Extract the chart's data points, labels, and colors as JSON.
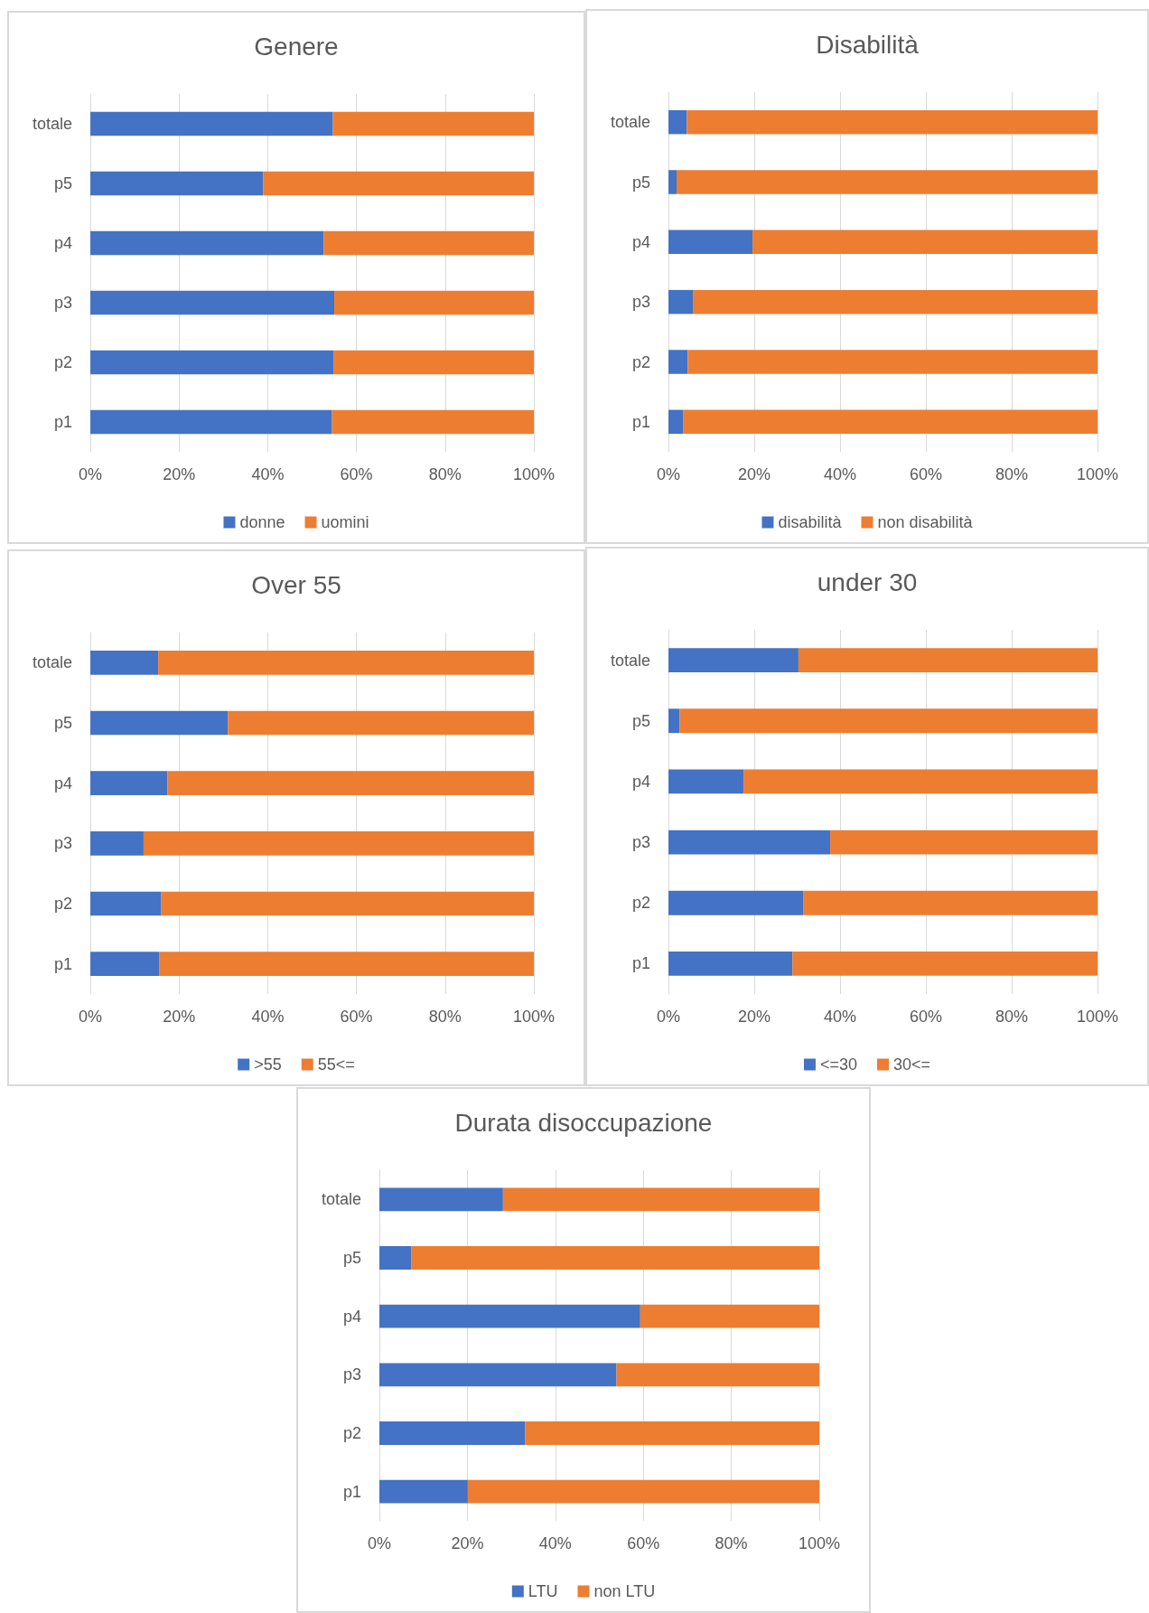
{
  "chart_data": [
    {
      "type": "bar",
      "title": "Genere",
      "orientation": "horizontal",
      "stacked": true,
      "categories": [
        "totale",
        "p5",
        "p4",
        "p3",
        "p2",
        "p1"
      ],
      "series": [
        {
          "name": "donne",
          "color": "#4472c4",
          "values": [
            54.7,
            39,
            52.6,
            55,
            54.8,
            54.5
          ]
        },
        {
          "name": "uomini",
          "color": "#ed7d31",
          "values": [
            45.3,
            61,
            47.4,
            45,
            45.2,
            45.5
          ]
        }
      ],
      "xlim": [
        0,
        100
      ],
      "xticks": [
        {
          "value": 0,
          "label": "0%"
        },
        {
          "value": 20,
          "label": "20%"
        },
        {
          "value": 40,
          "label": "40%"
        },
        {
          "value": 60,
          "label": "60%"
        },
        {
          "value": 80,
          "label": "80%"
        },
        {
          "value": 100,
          "label": "100%"
        }
      ],
      "grid": "x",
      "legend": "bottom"
    },
    {
      "type": "bar",
      "title": "Disabilità",
      "orientation": "horizontal",
      "stacked": true,
      "categories": [
        "totale",
        "p5",
        "p4",
        "p3",
        "p2",
        "p1"
      ],
      "series": [
        {
          "name": "disabilità",
          "color": "#4472c4",
          "values": [
            4.3,
            1.9,
            19.6,
            5.7,
            4.5,
            3.5
          ]
        },
        {
          "name": "non disabilità",
          "color": "#ed7d31",
          "values": [
            95.7,
            98.1,
            80.4,
            94.3,
            95.5,
            96.5
          ]
        }
      ],
      "xlim": [
        0,
        100
      ],
      "xticks": [
        {
          "value": 0,
          "label": "0%"
        },
        {
          "value": 20,
          "label": "20%"
        },
        {
          "value": 40,
          "label": "40%"
        },
        {
          "value": 60,
          "label": "60%"
        },
        {
          "value": 80,
          "label": "80%"
        },
        {
          "value": 100,
          "label": "100%"
        }
      ],
      "grid": "x",
      "legend": "bottom"
    },
    {
      "type": "bar",
      "title": "Over 55",
      "orientation": "horizontal",
      "stacked": true,
      "categories": [
        "totale",
        "p5",
        "p4",
        "p3",
        "p2",
        "p1"
      ],
      "series": [
        {
          "name": ">55",
          "color": "#4472c4",
          "values": [
            15.3,
            31,
            17.4,
            12,
            16,
            15.5
          ]
        },
        {
          "name": "55<=",
          "color": "#ed7d31",
          "values": [
            84.7,
            69,
            82.6,
            88,
            84,
            84.5
          ]
        }
      ],
      "xlim": [
        0,
        100
      ],
      "xticks": [
        {
          "value": 0,
          "label": "0%"
        },
        {
          "value": 20,
          "label": "20%"
        },
        {
          "value": 40,
          "label": "40%"
        },
        {
          "value": 60,
          "label": "60%"
        },
        {
          "value": 80,
          "label": "80%"
        },
        {
          "value": 100,
          "label": "100%"
        }
      ],
      "grid": "x",
      "legend": "bottom"
    },
    {
      "type": "bar",
      "title": "under 30",
      "orientation": "horizontal",
      "stacked": true,
      "categories": [
        "totale",
        "p5",
        "p4",
        "p3",
        "p2",
        "p1"
      ],
      "series": [
        {
          "name": "<=30",
          "color": "#4472c4",
          "values": [
            30.3,
            2.6,
            17.5,
            37.7,
            31.5,
            28.9
          ]
        },
        {
          "name": "30<=",
          "color": "#ed7d31",
          "values": [
            69.7,
            97.4,
            82.5,
            62.3,
            68.5,
            71.1
          ]
        }
      ],
      "xlim": [
        0,
        100
      ],
      "xticks": [
        {
          "value": 0,
          "label": "0%"
        },
        {
          "value": 20,
          "label": "20%"
        },
        {
          "value": 40,
          "label": "40%"
        },
        {
          "value": 60,
          "label": "60%"
        },
        {
          "value": 80,
          "label": "80%"
        },
        {
          "value": 100,
          "label": "100%"
        }
      ],
      "grid": "x",
      "legend": "bottom"
    },
    {
      "type": "bar",
      "title": "Durata disoccupazione",
      "orientation": "horizontal",
      "stacked": true,
      "categories": [
        "totale",
        "p5",
        "p4",
        "p3",
        "p2",
        "p1"
      ],
      "series": [
        {
          "name": "LTU",
          "color": "#4472c4",
          "values": [
            28.1,
            7.3,
            59.3,
            53.9,
            33.1,
            20.1
          ]
        },
        {
          "name": "non LTU",
          "color": "#ed7d31",
          "values": [
            71.9,
            92.7,
            40.7,
            46.1,
            66.9,
            79.9
          ]
        }
      ],
      "xlim": [
        0,
        100
      ],
      "xticks": [
        {
          "value": 0,
          "label": "0%"
        },
        {
          "value": 20,
          "label": "20%"
        },
        {
          "value": 40,
          "label": "40%"
        },
        {
          "value": 60,
          "label": "60%"
        },
        {
          "value": 80,
          "label": "80%"
        },
        {
          "value": 100,
          "label": "100%"
        }
      ],
      "grid": "x",
      "legend": "bottom"
    }
  ]
}
